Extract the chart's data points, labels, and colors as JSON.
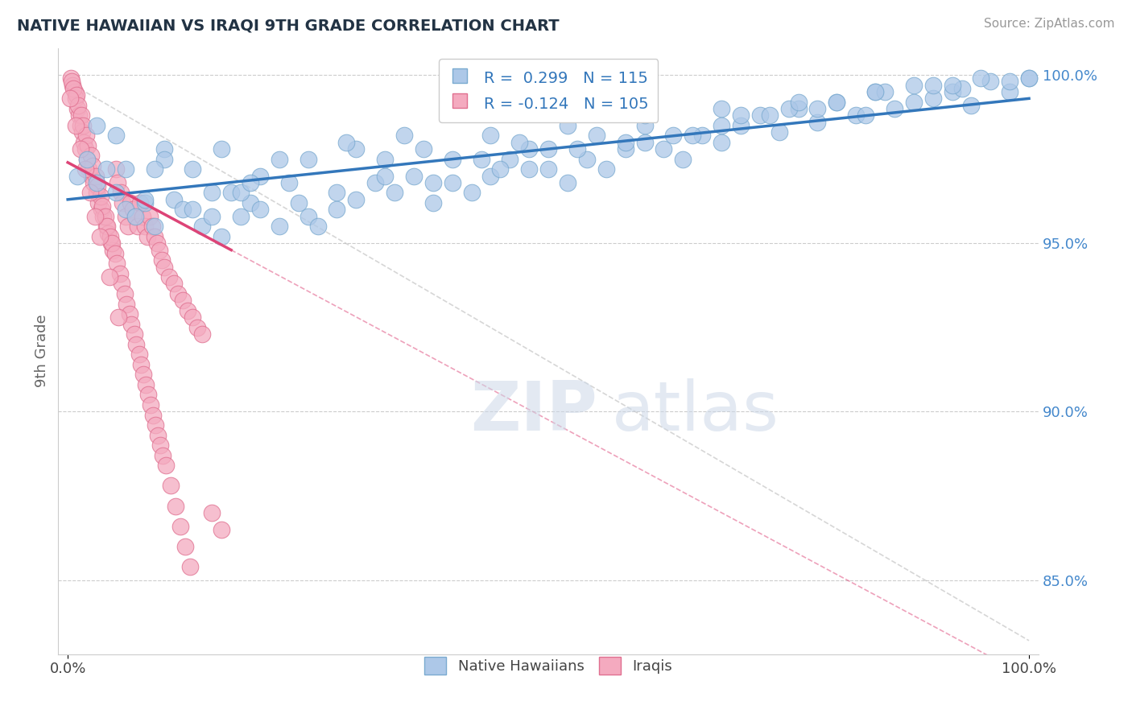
{
  "title": "NATIVE HAWAIIAN VS IRAQI 9TH GRADE CORRELATION CHART",
  "source_text": "Source: ZipAtlas.com",
  "ylabel": "9th Grade",
  "legend_labels": [
    "Native Hawaiians",
    "Iraqis"
  ],
  "r_blue": 0.299,
  "n_blue": 115,
  "r_pink": -0.124,
  "n_pink": 105,
  "blue_color": "#adc8e8",
  "pink_color": "#f4aabf",
  "blue_edge_color": "#7aaad0",
  "pink_edge_color": "#e07090",
  "blue_line_color": "#3377bb",
  "pink_line_color": "#dd4477",
  "watermark_zip": "ZIP",
  "watermark_atlas": "atlas",
  "xlim": [
    -0.01,
    1.01
  ],
  "ylim": [
    0.828,
    1.008
  ],
  "right_yticks": [
    0.85,
    0.9,
    0.95,
    1.0
  ],
  "right_yticklabels": [
    "85.0%",
    "90.0%",
    "95.0%",
    "100.0%"
  ],
  "xtick_positions": [
    0.0,
    1.0
  ],
  "xticklabels": [
    "0.0%",
    "100.0%"
  ],
  "blue_line_x": [
    0.0,
    1.0
  ],
  "blue_line_y": [
    0.963,
    0.993
  ],
  "pink_line_x": [
    0.0,
    0.17
  ],
  "pink_line_y": [
    0.974,
    0.948
  ],
  "diag_line_x": [
    0.0,
    1.0
  ],
  "diag_line_y": [
    0.998,
    0.832
  ],
  "blue_scatter_x": [
    0.01,
    0.02,
    0.03,
    0.04,
    0.05,
    0.06,
    0.07,
    0.08,
    0.09,
    0.1,
    0.11,
    0.12,
    0.13,
    0.14,
    0.15,
    0.16,
    0.17,
    0.18,
    0.19,
    0.2,
    0.22,
    0.24,
    0.25,
    0.26,
    0.28,
    0.3,
    0.32,
    0.34,
    0.36,
    0.38,
    0.4,
    0.42,
    0.44,
    0.46,
    0.48,
    0.5,
    0.52,
    0.54,
    0.56,
    0.58,
    0.6,
    0.62,
    0.64,
    0.66,
    0.68,
    0.7,
    0.72,
    0.74,
    0.76,
    0.78,
    0.8,
    0.82,
    0.84,
    0.86,
    0.88,
    0.9,
    0.92,
    0.94,
    0.96,
    0.98,
    1.0,
    0.05,
    0.1,
    0.15,
    0.2,
    0.25,
    0.3,
    0.35,
    0.4,
    0.45,
    0.5,
    0.55,
    0.6,
    0.65,
    0.7,
    0.75,
    0.8,
    0.85,
    0.9,
    0.95,
    0.08,
    0.13,
    0.18,
    0.23,
    0.28,
    0.33,
    0.38,
    0.43,
    0.48,
    0.53,
    0.58,
    0.63,
    0.68,
    0.73,
    0.78,
    0.83,
    0.88,
    0.93,
    0.98,
    0.03,
    0.09,
    0.16,
    0.22,
    0.29,
    0.37,
    0.44,
    0.52,
    0.6,
    0.68,
    0.76,
    0.84,
    0.92,
    1.0,
    0.06,
    0.19,
    0.33,
    0.47
  ],
  "blue_scatter_y": [
    0.97,
    0.975,
    0.968,
    0.972,
    0.965,
    0.96,
    0.958,
    0.962,
    0.955,
    0.978,
    0.963,
    0.96,
    0.972,
    0.955,
    0.958,
    0.952,
    0.965,
    0.958,
    0.962,
    0.96,
    0.955,
    0.962,
    0.958,
    0.955,
    0.96,
    0.963,
    0.968,
    0.965,
    0.97,
    0.962,
    0.968,
    0.965,
    0.97,
    0.975,
    0.978,
    0.972,
    0.968,
    0.975,
    0.972,
    0.978,
    0.98,
    0.978,
    0.975,
    0.982,
    0.98,
    0.985,
    0.988,
    0.983,
    0.99,
    0.986,
    0.992,
    0.988,
    0.995,
    0.99,
    0.997,
    0.993,
    0.995,
    0.991,
    0.998,
    0.995,
    0.999,
    0.982,
    0.975,
    0.965,
    0.97,
    0.975,
    0.978,
    0.982,
    0.975,
    0.972,
    0.978,
    0.982,
    0.985,
    0.982,
    0.988,
    0.99,
    0.992,
    0.995,
    0.997,
    0.999,
    0.963,
    0.96,
    0.965,
    0.968,
    0.965,
    0.97,
    0.968,
    0.975,
    0.972,
    0.978,
    0.98,
    0.982,
    0.985,
    0.988,
    0.99,
    0.988,
    0.992,
    0.996,
    0.998,
    0.985,
    0.972,
    0.978,
    0.975,
    0.98,
    0.978,
    0.982,
    0.985,
    0.988,
    0.99,
    0.992,
    0.995,
    0.997,
    0.999,
    0.972,
    0.968,
    0.975,
    0.98
  ],
  "pink_scatter_x": [
    0.003,
    0.005,
    0.007,
    0.008,
    0.01,
    0.012,
    0.013,
    0.015,
    0.017,
    0.018,
    0.02,
    0.022,
    0.025,
    0.027,
    0.03,
    0.032,
    0.035,
    0.037,
    0.04,
    0.042,
    0.045,
    0.047,
    0.05,
    0.052,
    0.055,
    0.057,
    0.06,
    0.063,
    0.065,
    0.068,
    0.07,
    0.073,
    0.075,
    0.078,
    0.08,
    0.083,
    0.085,
    0.088,
    0.09,
    0.093,
    0.095,
    0.098,
    0.1,
    0.105,
    0.11,
    0.115,
    0.12,
    0.125,
    0.13,
    0.135,
    0.14,
    0.15,
    0.16,
    0.004,
    0.006,
    0.009,
    0.011,
    0.014,
    0.016,
    0.019,
    0.021,
    0.024,
    0.026,
    0.029,
    0.031,
    0.034,
    0.036,
    0.039,
    0.041,
    0.044,
    0.046,
    0.049,
    0.051,
    0.054,
    0.056,
    0.059,
    0.061,
    0.064,
    0.066,
    0.069,
    0.071,
    0.074,
    0.076,
    0.079,
    0.081,
    0.084,
    0.086,
    0.089,
    0.091,
    0.094,
    0.096,
    0.099,
    0.102,
    0.107,
    0.112,
    0.117,
    0.122,
    0.127,
    0.002,
    0.008,
    0.013,
    0.018,
    0.023,
    0.028,
    0.033,
    0.043,
    0.053
  ],
  "pink_scatter_y": [
    0.999,
    0.997,
    0.995,
    0.993,
    0.99,
    0.988,
    0.985,
    0.983,
    0.98,
    0.978,
    0.975,
    0.972,
    0.97,
    0.968,
    0.965,
    0.962,
    0.96,
    0.958,
    0.955,
    0.953,
    0.95,
    0.948,
    0.972,
    0.968,
    0.965,
    0.962,
    0.958,
    0.955,
    0.962,
    0.96,
    0.958,
    0.955,
    0.962,
    0.958,
    0.955,
    0.952,
    0.958,
    0.955,
    0.952,
    0.95,
    0.948,
    0.945,
    0.943,
    0.94,
    0.938,
    0.935,
    0.933,
    0.93,
    0.928,
    0.925,
    0.923,
    0.87,
    0.865,
    0.998,
    0.996,
    0.994,
    0.991,
    0.988,
    0.985,
    0.982,
    0.979,
    0.976,
    0.973,
    0.97,
    0.967,
    0.964,
    0.961,
    0.958,
    0.955,
    0.952,
    0.95,
    0.947,
    0.944,
    0.941,
    0.938,
    0.935,
    0.932,
    0.929,
    0.926,
    0.923,
    0.92,
    0.917,
    0.914,
    0.911,
    0.908,
    0.905,
    0.902,
    0.899,
    0.896,
    0.893,
    0.89,
    0.887,
    0.884,
    0.878,
    0.872,
    0.866,
    0.86,
    0.854,
    0.993,
    0.985,
    0.978,
    0.972,
    0.965,
    0.958,
    0.952,
    0.94,
    0.928
  ]
}
